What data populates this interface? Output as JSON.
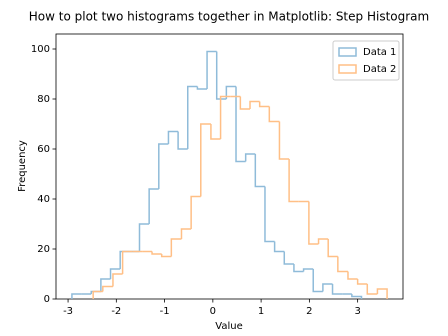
{
  "chart_data": {
    "type": "step-histogram",
    "title": "How to plot two histograms together in Matplotlib: Step Histogram",
    "x_label": "Value",
    "y_label": "Frequency",
    "xlim": [
      -3.25,
      3.94
    ],
    "ylim": [
      0,
      106
    ],
    "xticks": [
      -3,
      -2,
      -1,
      0,
      1,
      2,
      3
    ],
    "yticks": [
      0,
      20,
      40,
      60,
      80,
      100
    ],
    "legend": "upper right",
    "series": [
      {
        "name": "Data 1",
        "color": "#8fbbd9",
        "bins": [
          -2.92,
          -2.72,
          -2.52,
          -2.32,
          -2.12,
          -1.92,
          -1.72,
          -1.52,
          -1.32,
          -1.12,
          -0.92,
          -0.72,
          -0.52,
          -0.32,
          -0.12,
          0.08,
          0.28,
          0.48,
          0.68,
          0.88,
          1.08,
          1.28,
          1.48,
          1.68,
          1.88,
          2.08,
          2.28,
          2.48,
          2.68,
          2.88,
          3.08
        ],
        "values": [
          2,
          2,
          3,
          8,
          12,
          19,
          19,
          30,
          44,
          62,
          67,
          60,
          85,
          84,
          99,
          80,
          85,
          55,
          58,
          45,
          23,
          19,
          14,
          11,
          12,
          3,
          6,
          2,
          2,
          1
        ]
      },
      {
        "name": "Data 2",
        "color": "#ffbf86",
        "bins": [
          -2.48,
          -2.28,
          -2.07,
          -1.87,
          -1.67,
          -1.46,
          -1.26,
          -1.06,
          -0.86,
          -0.65,
          -0.45,
          -0.25,
          -0.04,
          0.16,
          0.36,
          0.57,
          0.77,
          0.97,
          1.17,
          1.38,
          1.58,
          1.78,
          1.99,
          2.19,
          2.39,
          2.59,
          2.8,
          3.0,
          3.2,
          3.41,
          3.61
        ],
        "values": [
          3,
          5,
          10,
          19,
          19,
          19,
          18,
          17,
          24,
          28,
          41,
          70,
          64,
          81,
          81,
          76,
          79,
          77,
          71,
          56,
          39,
          39,
          22,
          24,
          17,
          11,
          8,
          6,
          2,
          4
        ]
      }
    ]
  }
}
